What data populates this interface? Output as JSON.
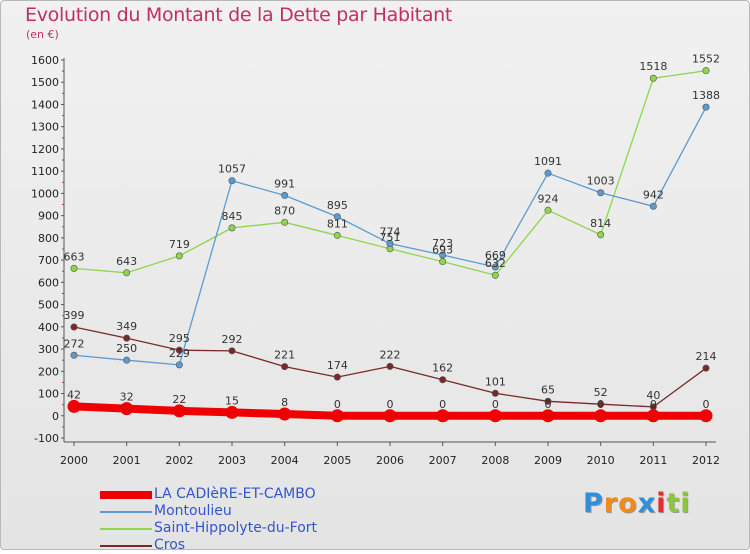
{
  "title": "Evolution du Montant de la Dette par Habitant",
  "unit": "(en €)",
  "chart_data": {
    "type": "line",
    "title": "Evolution du Montant de la Dette par Habitant",
    "ylabel": "(en €)",
    "xlabel": "",
    "x": [
      "2000",
      "2001",
      "2002",
      "2003",
      "2004",
      "2005",
      "2006",
      "2007",
      "2008",
      "2009",
      "2010",
      "2011",
      "2012"
    ],
    "yticks": [
      "-100",
      "0",
      "100",
      "200",
      "300",
      "400",
      "500",
      "600",
      "700",
      "800",
      "900",
      "1000",
      "1100",
      "1200",
      "1300",
      "1400",
      "1500",
      "1600"
    ],
    "ylim": [
      -100,
      1600
    ],
    "grid": false,
    "legend_position": "bottom-left",
    "series": [
      {
        "name": "LA CADIèRE-ET-CAMBO",
        "color": "#ee0000",
        "width": 8,
        "values": [
          42,
          32,
          22,
          15,
          8,
          0,
          0,
          0,
          0,
          0,
          0,
          0,
          0
        ],
        "labels": [
          "42",
          "32",
          "22",
          "15",
          "8",
          "0",
          "0",
          "0",
          "0",
          "0",
          "0",
          "0",
          "0"
        ]
      },
      {
        "name": "Montoulieu",
        "color": "#5b9bd1",
        "width": 1.3,
        "values": [
          272,
          250,
          229,
          1057,
          991,
          895,
          774,
          723,
          669,
          1091,
          1003,
          942,
          1388
        ],
        "labels": [
          "272",
          "250",
          "229",
          "1057",
          "991",
          "895",
          "774",
          "723",
          "669",
          "1091",
          "1003",
          "942",
          "1388"
        ]
      },
      {
        "name": "Saint-Hippolyte-du-Fort",
        "color": "#8fd64a",
        "width": 1.3,
        "values": [
          663,
          643,
          719,
          845,
          870,
          811,
          751,
          693,
          632,
          924,
          814,
          1518,
          1552
        ],
        "labels": [
          "663",
          "643",
          "719",
          "845",
          "870",
          "811",
          "751",
          "693",
          "632",
          "924",
          "814",
          "1518",
          "1552"
        ]
      },
      {
        "name": "Cros",
        "color": "#7a2828",
        "width": 1.3,
        "values": [
          399,
          349,
          295,
          292,
          221,
          174,
          222,
          162,
          101,
          65,
          52,
          40,
          214
        ],
        "labels": [
          "399",
          "349",
          "295",
          "292",
          "221",
          "174",
          "222",
          "162",
          "101",
          "65",
          "52",
          "40",
          "214"
        ]
      }
    ]
  },
  "legend": [
    {
      "label": "LA CADIèRE-ET-CAMBO",
      "color": "#ee0000",
      "text_color": "#3355cc"
    },
    {
      "label": "Montoulieu",
      "color": "#5b9bd1",
      "text_color": "#3355cc"
    },
    {
      "label": "Saint-Hippolyte-du-Fort",
      "color": "#8fd64a",
      "text_color": "#3355cc"
    },
    {
      "label": "Cros",
      "color": "#7a2828",
      "text_color": "#3355cc"
    }
  ],
  "logo": {
    "letters": [
      "P",
      "r",
      "o",
      "x",
      "i",
      "t",
      "i"
    ],
    "colors": [
      "#2f8fd8",
      "#f08a1a",
      "#f08a1a",
      "#2f8fd8",
      "#e03030",
      "#8cc63f",
      "#8cc63f"
    ]
  }
}
